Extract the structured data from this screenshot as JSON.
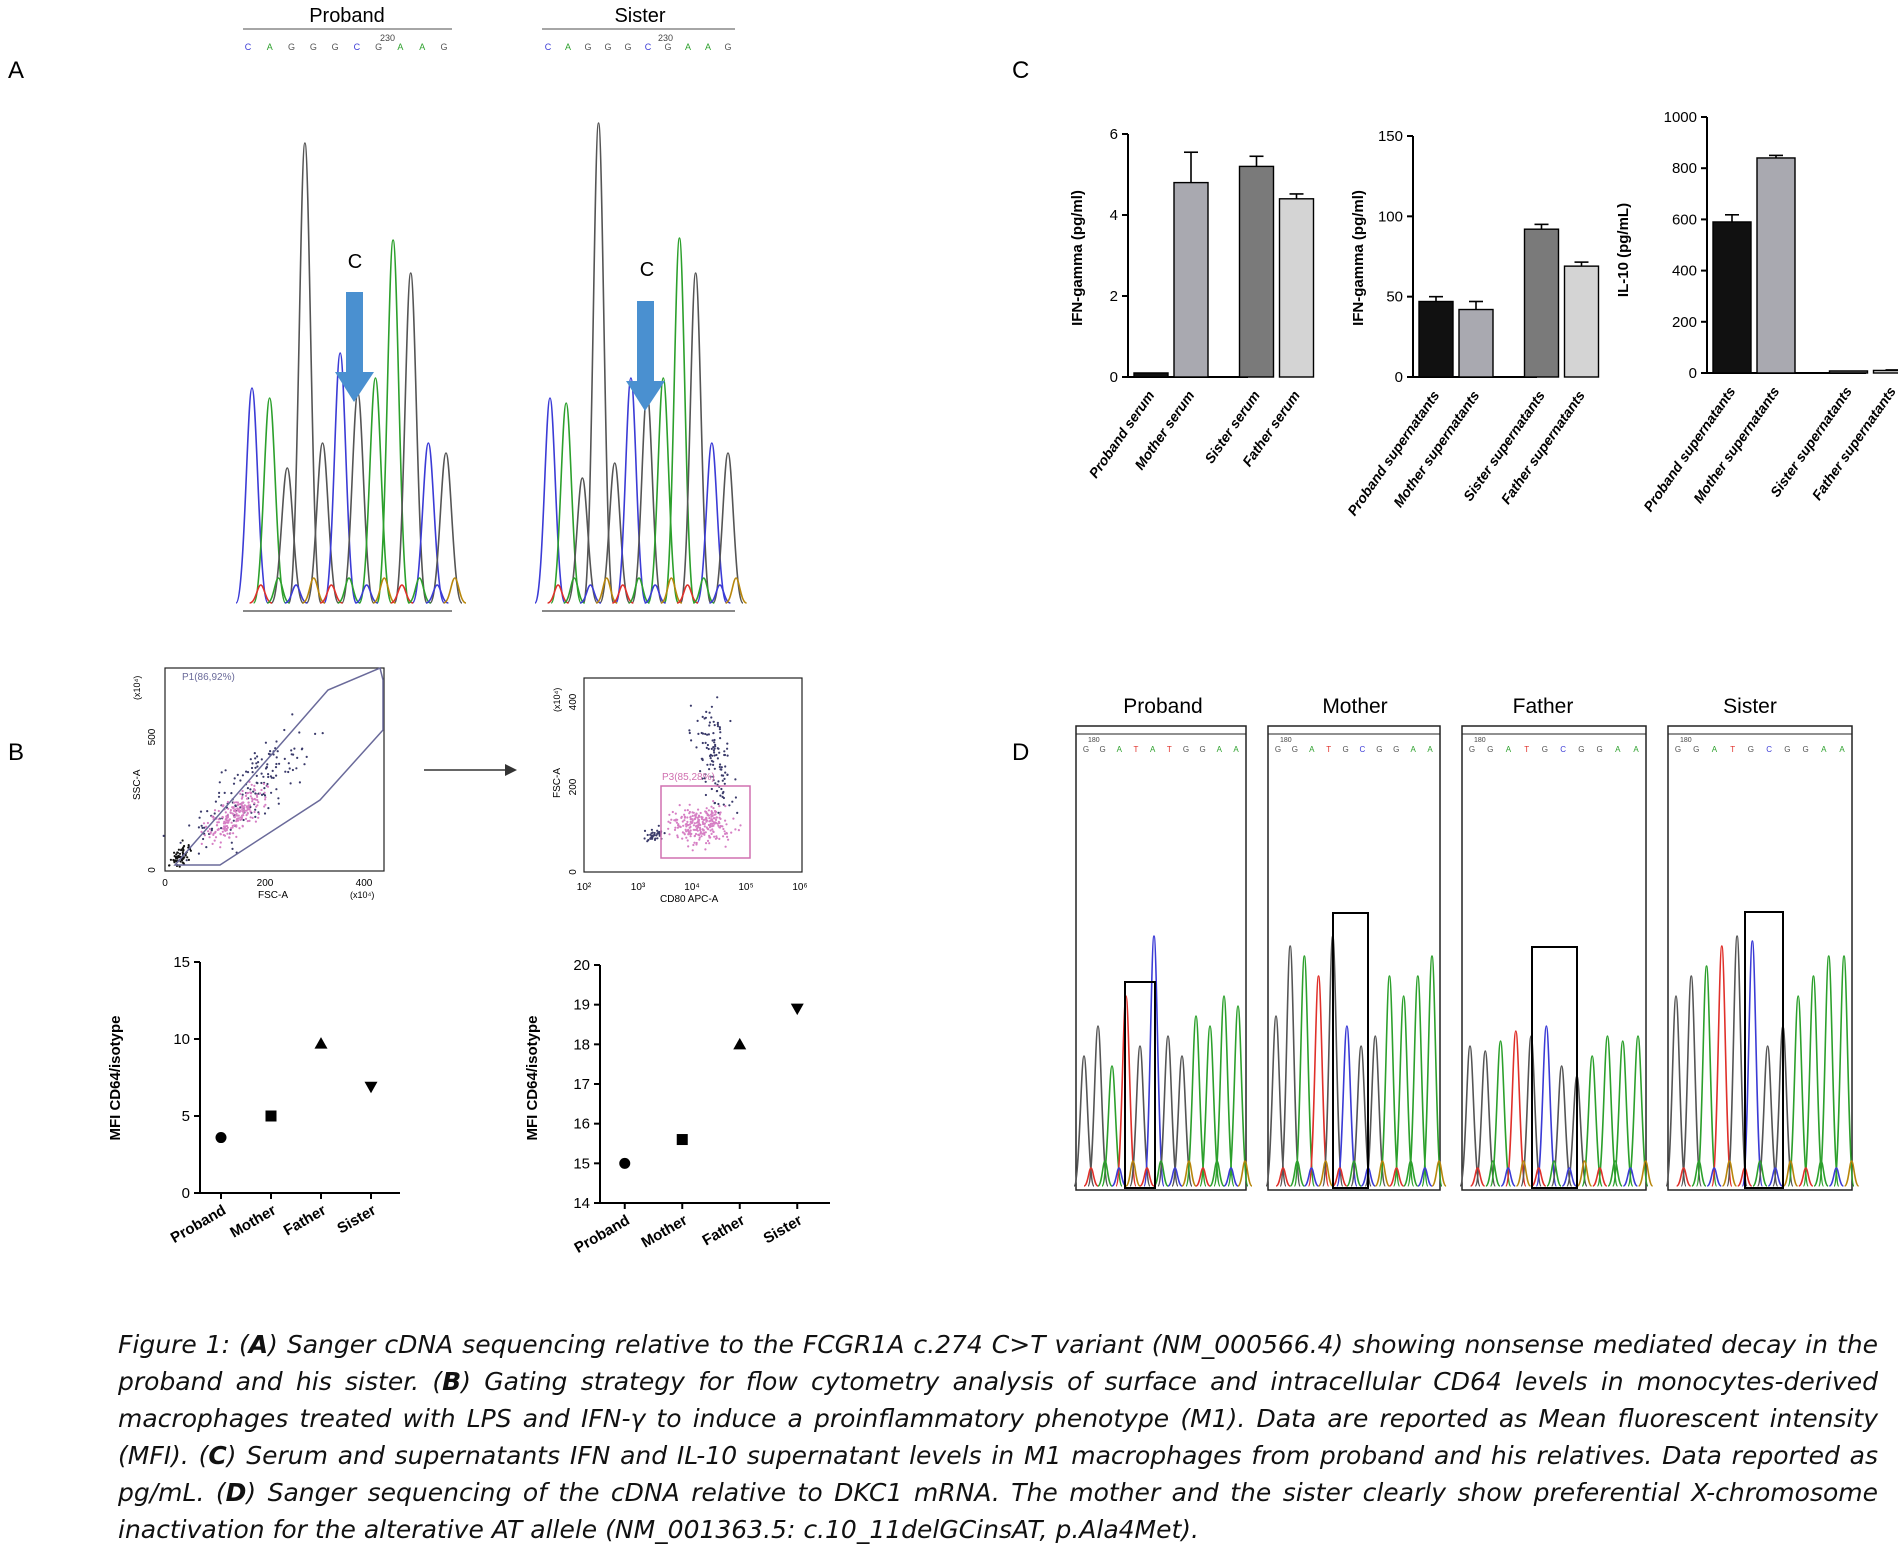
{
  "panels": {
    "A": {
      "label": "A",
      "samples": [
        {
          "name": "Proband",
          "position": "230",
          "sequence": [
            "C",
            "A",
            "G",
            "G",
            "G",
            "C",
            "G",
            "A",
            "A",
            "G"
          ],
          "annotation": "C"
        },
        {
          "name": "Sister",
          "position": "230",
          "sequence": [
            "C",
            "A",
            "G",
            "G",
            "G",
            "C",
            "G",
            "A",
            "A",
            "G"
          ],
          "annotation": "C"
        }
      ]
    },
    "B": {
      "label": "B",
      "gating": [
        {
          "gate": "P1(86,92%)",
          "xlabel": "FSC-A",
          "ylabel": "SSC-A",
          "xunit": "(x10⁴)",
          "yunit": "(x10⁴)",
          "xticks": [
            "0",
            "200",
            "400"
          ],
          "yticks": [
            "0",
            "500"
          ]
        },
        {
          "gate": "P3(85,28%)",
          "xlabel": "CD80 APC-A",
          "ylabel": "FSC-A",
          "yunit": "(x10⁴)",
          "xticks": [
            "10²",
            "10³",
            "10⁴",
            "10⁵",
            "10⁶"
          ],
          "yticks": [
            "0",
            "200",
            "400"
          ]
        }
      ]
    },
    "C": {
      "label": "C"
    },
    "D": {
      "label": "D",
      "samples": [
        {
          "name": "Proband",
          "position": "180",
          "sequence": [
            "G",
            "G",
            "A",
            "T",
            "A",
            "T",
            "G",
            "G",
            "A",
            "A"
          ]
        },
        {
          "name": "Mother",
          "position": "180",
          "sequence": [
            "G",
            "G",
            "A",
            "T",
            "G",
            "C",
            "G",
            "G",
            "A",
            "A"
          ]
        },
        {
          "name": "Father",
          "position": "180",
          "sequence": [
            "G",
            "G",
            "A",
            "T",
            "G",
            "C",
            "G",
            "G",
            "A",
            "A"
          ]
        },
        {
          "name": "Sister",
          "position": "180",
          "sequence": [
            "G",
            "G",
            "A",
            "T",
            "G",
            "C",
            "G",
            "G",
            "A",
            "A"
          ]
        }
      ]
    }
  },
  "base_colors": {
    "A": "#2ca02c",
    "C": "#3b3bd6",
    "G": "#555555",
    "T": "#e0302a"
  },
  "chart_data": [
    {
      "type": "bar",
      "panel": "C",
      "categories": [
        "Proband serum",
        "Mother serum",
        "Sister serum",
        "Father serum"
      ],
      "values": [
        0.1,
        4.8,
        5.2,
        4.4
      ],
      "errors": [
        0,
        0.75,
        0.25,
        0.12
      ],
      "colors": [
        "#111111",
        "#a9a9b0",
        "#7a7a7a",
        "#d4d4d4"
      ],
      "ylabel": "IFN-gamma (pg/ml)",
      "ylim": [
        0,
        6
      ],
      "yticks": [
        "0",
        "2",
        "4",
        "6"
      ]
    },
    {
      "type": "bar",
      "panel": "C",
      "categories": [
        "Proband supernatants",
        "Mother supernatants",
        "Sister supernatants",
        "Father supernatants"
      ],
      "values": [
        47,
        42,
        92,
        69
      ],
      "errors": [
        3,
        5,
        3,
        2.5
      ],
      "colors": [
        "#111111",
        "#a9a9b0",
        "#7a7a7a",
        "#d4d4d4"
      ],
      "ylabel": "IFN-gamma (pg/ml)",
      "ylim": [
        0,
        150
      ],
      "yticks": [
        "0",
        "50",
        "100",
        "150"
      ]
    },
    {
      "type": "bar",
      "panel": "C",
      "categories": [
        "Proband supernatants",
        "Mother supernatants",
        "Sister supernatants",
        "Father supernatants"
      ],
      "values": [
        590,
        840,
        8,
        10
      ],
      "errors": [
        28,
        10,
        0,
        2
      ],
      "colors": [
        "#111111",
        "#a9a9b0",
        "#7a7a7a",
        "#d4d4d4"
      ],
      "ylabel": "IL-10 (pg/mL)",
      "ylim": [
        0,
        1000
      ],
      "yticks": [
        "0",
        "200",
        "400",
        "600",
        "800",
        "1000"
      ]
    },
    {
      "type": "scatter",
      "panel": "B",
      "categories": [
        "Proband",
        "Mother",
        "Father",
        "Sister"
      ],
      "values": [
        3.6,
        5.0,
        9.7,
        6.9
      ],
      "markers": [
        "circle",
        "square",
        "triangle-up",
        "triangle-down"
      ],
      "ylabel": "MFI CD64/isotype",
      "ylim": [
        0,
        15
      ],
      "yticks": [
        "0",
        "5",
        "10",
        "15"
      ]
    },
    {
      "type": "scatter",
      "panel": "B",
      "categories": [
        "Proband",
        "Mother",
        "Father",
        "Sister"
      ],
      "values": [
        15.0,
        15.6,
        18.0,
        18.9
      ],
      "markers": [
        "circle",
        "square",
        "triangle-up",
        "triangle-down"
      ],
      "ylabel": "MFI CD64/isotype",
      "ylim": [
        14,
        20
      ],
      "yticks": [
        "14",
        "15",
        "16",
        "17",
        "18",
        "19",
        "20"
      ]
    }
  ],
  "caption": [
    {
      "t": "Figure 1: (",
      "b": false
    },
    {
      "t": "A",
      "b": true
    },
    {
      "t": ") Sanger cDNA sequencing relative to the FCGR1A c.274 C>T variant (NM_000566.4) showing nonsense mediated decay in the proband and his sister. (",
      "b": false
    },
    {
      "t": "B",
      "b": true
    },
    {
      "t": ") Gating strategy for flow cytometry analysis of surface and intracellular CD64 levels in monocytes-derived macrophages treated with LPS and IFN-γ to induce a proinflammatory phenotype (M1). Data are reported as Mean fluorescent intensity (MFI). (",
      "b": false
    },
    {
      "t": "C",
      "b": true
    },
    {
      "t": ") Serum and supernatants IFN and IL-10 supernatant levels in M1 macrophages from proband and his relatives.  Data reported as pg/mL. (",
      "b": false
    },
    {
      "t": "D",
      "b": true
    },
    {
      "t": ") Sanger sequencing of the cDNA relative to DKC1 mRNA. The mother and the sister clearly show preferential X-chromosome inactivation for the alterative AT allele (NM_001363.5: c.10_11delGCinsAT, p.Ala4Met).",
      "b": false
    }
  ]
}
